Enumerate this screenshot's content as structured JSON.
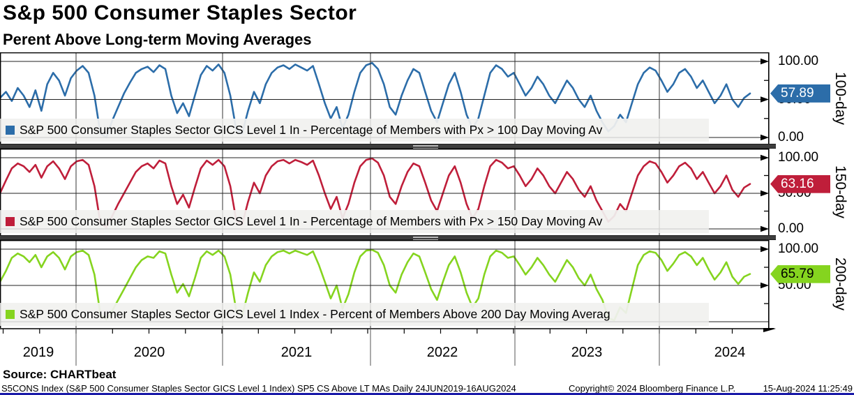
{
  "header": {
    "title": "S&p 500 Consumer Staples Sector",
    "subtitle": "Perent Above Long-term Moving Averages"
  },
  "chart_data": {
    "type": "line",
    "title": "S&p 500 Consumer Staples Sector",
    "subtitle": "Perent Above Long-term Moving Averages",
    "x_range_years": [
      2019.48,
      2024.62
    ],
    "x_tick_years": [
      "2019",
      "2020",
      "2021",
      "2022",
      "2023",
      "2024"
    ],
    "ylim": [
      0,
      100
    ],
    "grid": true,
    "legend_position": "bottom-inside",
    "panels": [
      {
        "id": "100-day",
        "axis_label": "100-day",
        "legend": "S&P 500 Consumer Staples Sector GICS Level 1 In - Percentage of Members with Px > 100 Day Moving Av",
        "color": "#2c6da9",
        "tag_text_color": "#ffffff",
        "last_value": "57.89",
        "last_value_num": 57.89,
        "y_tick_labels": [
          "100.00",
          "50.00",
          "0.00"
        ],
        "values": [
          52,
          60,
          48,
          65,
          55,
          40,
          62,
          35,
          70,
          85,
          75,
          55,
          78,
          88,
          94,
          85,
          55,
          5,
          0,
          22,
          40,
          58,
          72,
          85,
          90,
          93,
          86,
          95,
          90,
          55,
          32,
          45,
          28,
          55,
          82,
          94,
          88,
          96,
          85,
          55,
          10,
          5,
          35,
          60,
          45,
          70,
          85,
          92,
          95,
          90,
          96,
          92,
          88,
          94,
          70,
          45,
          25,
          40,
          12,
          30,
          60,
          85,
          95,
          98,
          90,
          70,
          40,
          30,
          55,
          75,
          90,
          85,
          60,
          35,
          20,
          45,
          70,
          85,
          60,
          30,
          12,
          25,
          55,
          85,
          95,
          90,
          80,
          85,
          70,
          55,
          65,
          80,
          70,
          55,
          45,
          60,
          75,
          65,
          50,
          40,
          55,
          35,
          20,
          8,
          15,
          30,
          20,
          45,
          70,
          85,
          92,
          88,
          75,
          60,
          70,
          85,
          90,
          80,
          65,
          75,
          60,
          45,
          55,
          70,
          50,
          40,
          52,
          57.89
        ]
      },
      {
        "id": "150-day",
        "axis_label": "150-day",
        "legend": "S&P 500 Consumer Staples Sector GICS Level 1 In - Percentage of Members with Px > 150 Day Moving Av",
        "color": "#bf1e3a",
        "tag_text_color": "#ffffff",
        "last_value": "63.16",
        "last_value_num": 63.16,
        "y_tick_labels": [
          "100.00",
          "50.00",
          "0.00"
        ],
        "values": [
          50,
          68,
          85,
          92,
          88,
          80,
          90,
          72,
          88,
          95,
          85,
          70,
          88,
          95,
          97,
          90,
          60,
          8,
          2,
          18,
          35,
          50,
          65,
          80,
          88,
          92,
          85,
          96,
          92,
          60,
          35,
          48,
          30,
          58,
          85,
          96,
          90,
          97,
          88,
          60,
          12,
          6,
          38,
          65,
          50,
          75,
          88,
          95,
          97,
          92,
          97,
          94,
          90,
          96,
          75,
          50,
          28,
          45,
          15,
          35,
          65,
          88,
          97,
          99,
          93,
          75,
          45,
          35,
          60,
          80,
          92,
          88,
          65,
          40,
          25,
          50,
          75,
          88,
          65,
          35,
          15,
          28,
          60,
          88,
          97,
          93,
          85,
          88,
          75,
          60,
          70,
          85,
          75,
          60,
          50,
          65,
          80,
          70,
          55,
          45,
          60,
          40,
          25,
          10,
          18,
          35,
          25,
          50,
          75,
          88,
          95,
          92,
          80,
          65,
          75,
          88,
          93,
          85,
          70,
          80,
          65,
          50,
          60,
          75,
          55,
          45,
          58,
          63.16
        ]
      },
      {
        "id": "200-day",
        "axis_label": "200-day",
        "legend": "S&P 500 Consumer Staples Sector GICS Level 1 Index - Percent of Members Above 200 Day Moving Averag",
        "color": "#85d41f",
        "tag_text_color": "#000000",
        "last_value": "65.79",
        "last_value_num": 65.79,
        "y_tick_labels": [
          "100.00",
          "50.00"
        ],
        "values": [
          55,
          70,
          88,
          94,
          90,
          82,
          92,
          75,
          90,
          96,
          88,
          72,
          90,
          96,
          98,
          92,
          65,
          10,
          3,
          15,
          30,
          45,
          60,
          75,
          85,
          90,
          88,
          97,
          94,
          65,
          40,
          52,
          35,
          60,
          88,
          97,
          92,
          98,
          90,
          65,
          15,
          8,
          40,
          68,
          55,
          78,
          90,
          96,
          98,
          94,
          98,
          95,
          92,
          97,
          78,
          55,
          32,
          50,
          18,
          38,
          68,
          90,
          98,
          99,
          95,
          78,
          50,
          40,
          65,
          82,
          94,
          90,
          68,
          45,
          30,
          55,
          78,
          90,
          68,
          40,
          20,
          32,
          65,
          90,
          98,
          95,
          88,
          90,
          78,
          65,
          75,
          88,
          78,
          65,
          55,
          70,
          85,
          75,
          60,
          50,
          65,
          45,
          30,
          5,
          2,
          20,
          12,
          45,
          78,
          92,
          97,
          95,
          85,
          70,
          80,
          92,
          96,
          90,
          78,
          88,
          72,
          58,
          68,
          82,
          62,
          52,
          62,
          65.79
        ]
      }
    ]
  },
  "footer": {
    "source": "Source: CHARTbeat",
    "description": "S5CONS Index (S&P 500 Consumer Staples Sector GICS Level 1 Index) SP5 CS Above LT MAs  Daily 24JUN2019-16AUG2024",
    "copyright": "Copyright© 2024 Bloomberg Finance L.P.",
    "timestamp": "15-Aug-2024 11:25:49"
  }
}
